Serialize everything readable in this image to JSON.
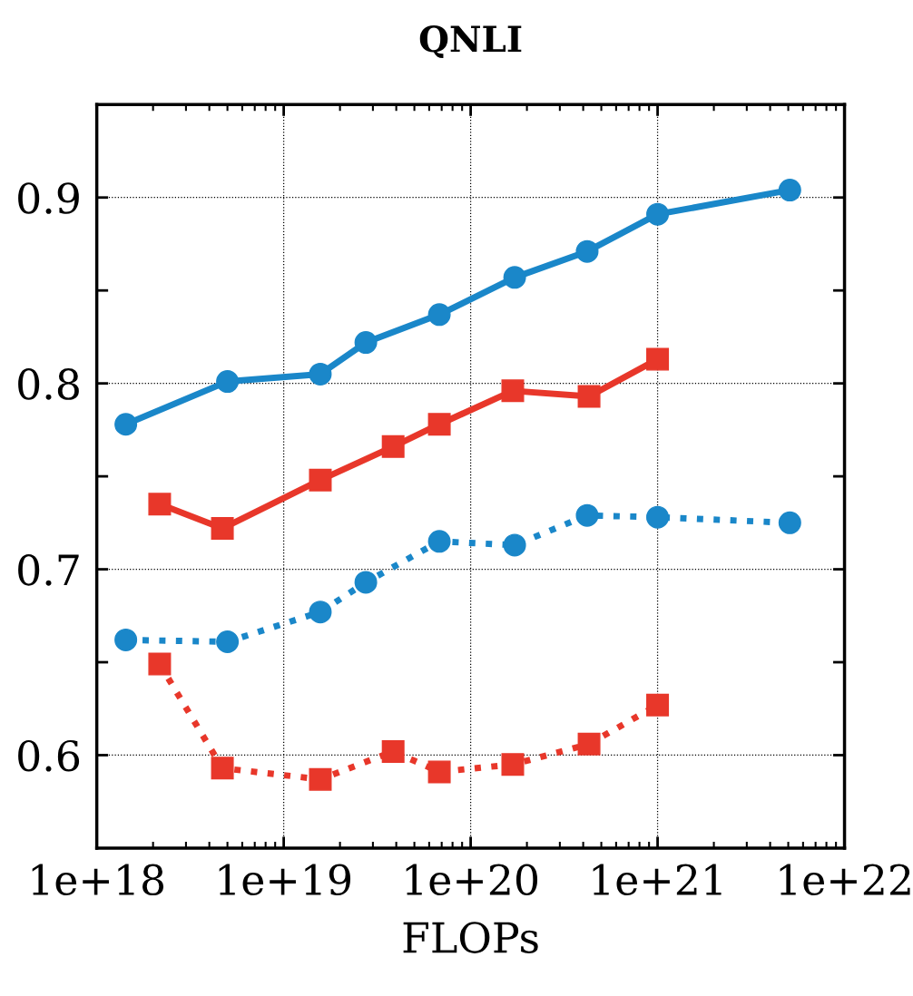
{
  "chart_data": {
    "type": "line",
    "title": "QNLI",
    "xlabel": "FLOPs",
    "log": "x",
    "grid": true,
    "xlim": [
      1e+18,
      1e+22
    ],
    "ylim": [
      0.55,
      0.95
    ],
    "xticks": [
      {
        "value": 1e+18,
        "label": "1e+18"
      },
      {
        "value": 1e+19,
        "label": "1e+19"
      },
      {
        "value": 1e+20,
        "label": "1e+20"
      },
      {
        "value": 1e+21,
        "label": "1e+21"
      },
      {
        "value": 1e+22,
        "label": "1e+22"
      }
    ],
    "yticks": [
      0.6,
      {
        "value": 0.65,
        "label": null
      },
      0.7,
      {
        "value": 0.75,
        "label": null
      },
      0.8,
      {
        "value": 0.85,
        "label": null
      },
      0.9
    ],
    "series": [
      {
        "color": "#1a87c9",
        "marker": "circle",
        "line_style": "solid",
        "x": [
          1.43e+18,
          5e+18,
          1.57e+19,
          2.75e+19,
          6.8e+19,
          1.72e+20,
          4.2e+20,
          1e+21,
          5.1e+21
        ],
        "values": [
          0.778,
          0.801,
          0.805,
          0.822,
          0.837,
          0.857,
          0.871,
          0.891,
          0.904
        ]
      },
      {
        "color": "#e8372a",
        "marker": "square",
        "line_style": "solid",
        "x": [
          2.17e+18,
          4.7e+18,
          1.57e+19,
          3.85e+19,
          6.8e+19,
          1.68e+20,
          4.3e+20,
          1e+21
        ],
        "values": [
          0.735,
          0.722,
          0.748,
          0.766,
          0.778,
          0.796,
          0.793,
          0.813
        ]
      },
      {
        "color": "#1a87c9",
        "marker": "circle",
        "line_style": "dotted",
        "x": [
          1.43e+18,
          5e+18,
          1.57e+19,
          2.75e+19,
          6.8e+19,
          1.72e+20,
          4.2e+20,
          1e+21,
          5.1e+21
        ],
        "values": [
          0.662,
          0.661,
          0.677,
          0.693,
          0.715,
          0.713,
          0.729,
          0.728,
          0.725
        ]
      },
      {
        "color": "#e8372a",
        "marker": "square",
        "line_style": "dotted",
        "x": [
          2.17e+18,
          4.7e+18,
          1.57e+19,
          3.85e+19,
          6.8e+19,
          1.68e+20,
          4.3e+20,
          1e+21
        ],
        "values": [
          0.649,
          0.593,
          0.587,
          0.602,
          0.591,
          0.595,
          0.606,
          0.627
        ]
      }
    ]
  }
}
